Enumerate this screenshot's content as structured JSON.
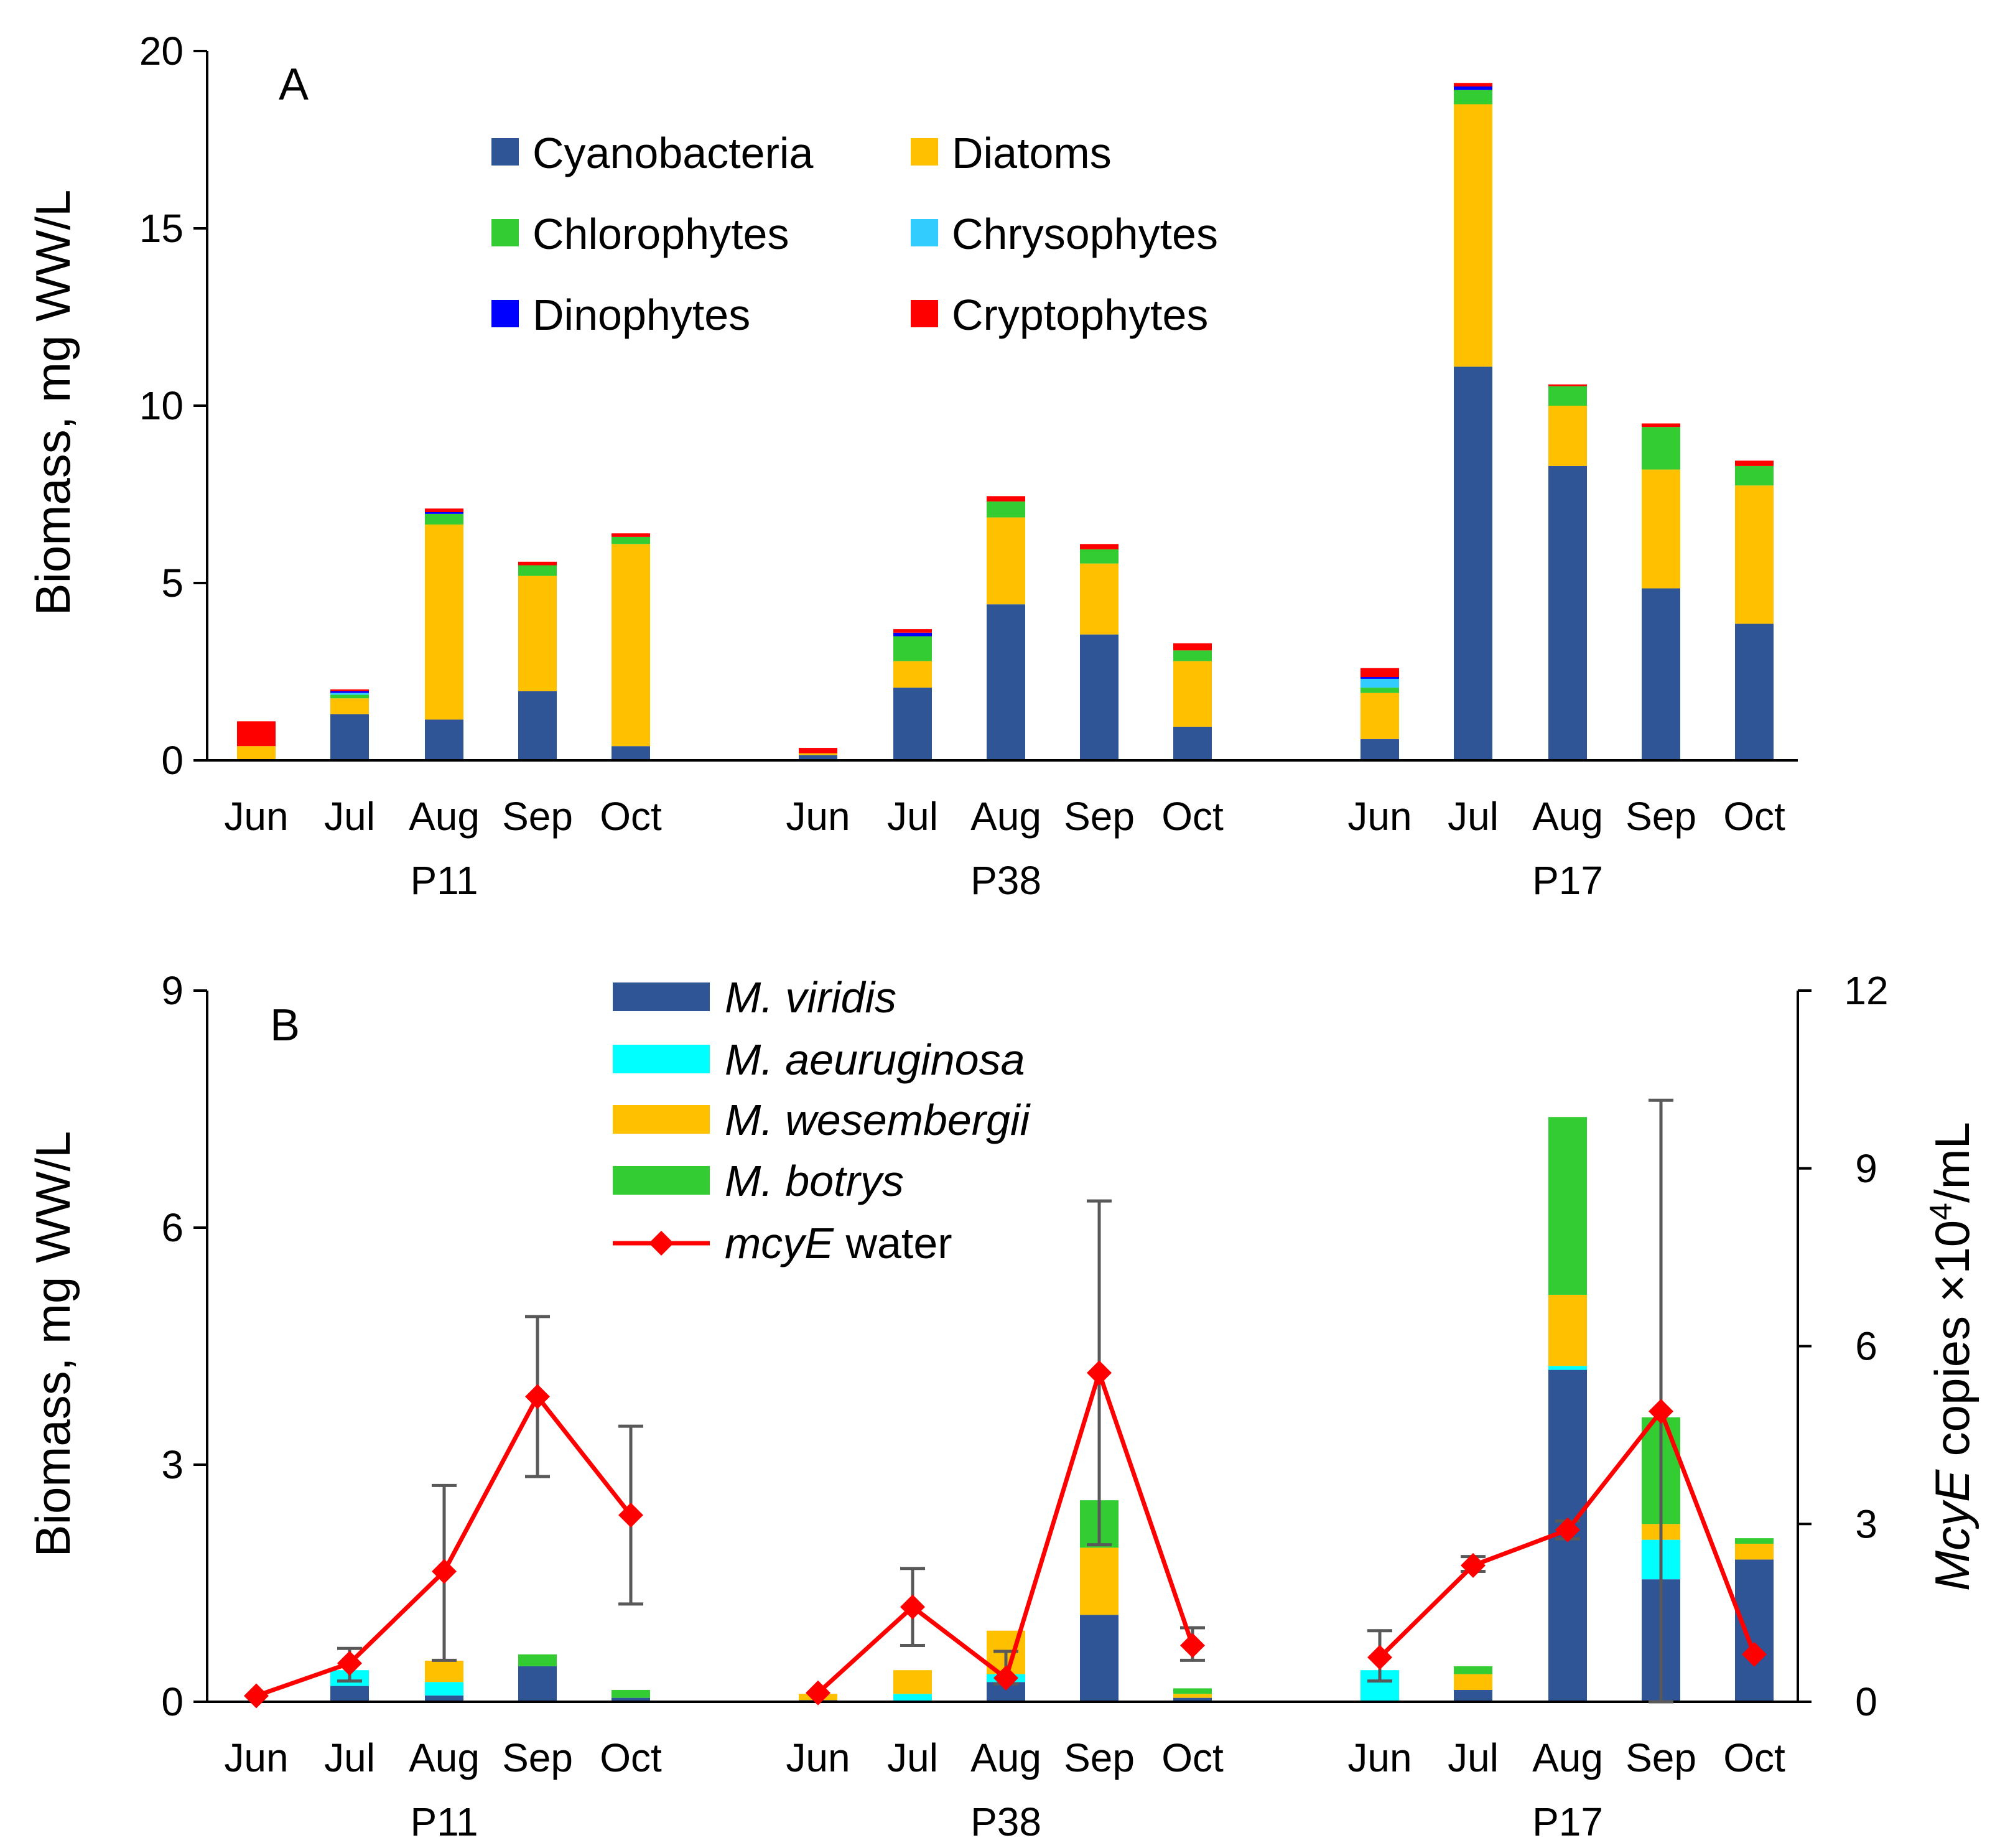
{
  "chart_data": [
    {
      "panel": "A",
      "type": "bar",
      "stacked": true,
      "ylabel": "Biomass, mg WW/L",
      "ylim": [
        0,
        20
      ],
      "yticks": [
        0,
        5,
        10,
        15,
        20
      ],
      "groups": [
        "P11",
        "P38",
        "P17"
      ],
      "months": [
        "Jun",
        "Jul",
        "Aug",
        "Sep",
        "Oct"
      ],
      "legend_position": "top-center",
      "series": [
        {
          "name": "Cyanobacteria",
          "color": "#2f5597",
          "values": [
            0,
            1.3,
            1.15,
            1.95,
            0.4,
            0.15,
            2.05,
            4.4,
            3.55,
            0.95,
            0.6,
            11.1,
            8.3,
            4.85,
            3.85
          ]
        },
        {
          "name": "Diatoms",
          "color": "#ffc000",
          "values": [
            0.4,
            0.45,
            5.5,
            3.25,
            5.7,
            0.05,
            0.75,
            2.45,
            2.0,
            1.85,
            1.3,
            7.4,
            1.7,
            3.35,
            3.9
          ]
        },
        {
          "name": "Chlorophytes",
          "color": "#33cc33",
          "values": [
            0,
            0.1,
            0.3,
            0.3,
            0.2,
            0,
            0.7,
            0.45,
            0.4,
            0.3,
            0.15,
            0.4,
            0.55,
            1.2,
            0.55
          ]
        },
        {
          "name": "Chrysophytes",
          "color": "#33ccff",
          "values": [
            0,
            0.05,
            0,
            0,
            0,
            0,
            0,
            0,
            0,
            0,
            0.25,
            0,
            0,
            0,
            0
          ]
        },
        {
          "name": "Dinophytes",
          "color": "#0000ff",
          "values": [
            0,
            0.05,
            0.05,
            0,
            0,
            0,
            0.1,
            0,
            0,
            0,
            0.05,
            0.1,
            0,
            0,
            0
          ]
        },
        {
          "name": "Cryptophytes",
          "color": "#ff0000",
          "values": [
            0.7,
            0.05,
            0.1,
            0.1,
            0.1,
            0.15,
            0.1,
            0.15,
            0.15,
            0.2,
            0.25,
            0.1,
            0.05,
            0.1,
            0.15
          ]
        }
      ]
    },
    {
      "panel": "B",
      "type": "bar",
      "stacked": true,
      "ylabel": "Biomass, mg WW/L",
      "ylim": [
        0,
        9
      ],
      "yticks": [
        0,
        3,
        6,
        9
      ],
      "y2label_italic": "McyE",
      "y2label_rest": " copies ×10",
      "y2label_sup": "4",
      "y2label_end": "/mL",
      "y2lim": [
        0,
        12
      ],
      "y2ticks": [
        0,
        3,
        6,
        9,
        12
      ],
      "groups": [
        "P11",
        "P38",
        "P17"
      ],
      "months": [
        "Jun",
        "Jul",
        "Aug",
        "Sep",
        "Oct"
      ],
      "legend_position": "top-center",
      "series": [
        {
          "name": "M. viridis",
          "color": "#2f5597",
          "values": [
            0,
            0.2,
            0.08,
            0.45,
            0.05,
            0.02,
            0,
            0.25,
            1.1,
            0.05,
            0,
            0.15,
            4.2,
            1.55,
            1.8
          ]
        },
        {
          "name": "M. aeuruginosa",
          "color": "#00ffff",
          "values": [
            0,
            0.2,
            0.17,
            0,
            0,
            0,
            0.1,
            0.1,
            0,
            0,
            0.4,
            0,
            0.05,
            0.5,
            0
          ]
        },
        {
          "name": "M. wesembergii",
          "color": "#ffc000",
          "values": [
            0,
            0,
            0.27,
            0,
            0,
            0.08,
            0.3,
            0.55,
            0.85,
            0.05,
            0,
            0.2,
            0.9,
            0.2,
            0.2
          ]
        },
        {
          "name": "M. botrys",
          "color": "#33cc33",
          "values": [
            0,
            0,
            0,
            0.15,
            0.1,
            0,
            0,
            0,
            0.6,
            0.07,
            0,
            0.1,
            2.25,
            1.35,
            0.07
          ]
        }
      ],
      "line": {
        "name_italic": "mcyE",
        "name_rest": " water",
        "color": "#ff0000",
        "values": [
          0.1,
          0.65,
          2.2,
          5.15,
          3.15,
          0.15,
          1.6,
          0.4,
          5.55,
          0.95,
          0.75,
          2.3,
          2.9,
          4.9,
          0.8
        ],
        "err_low": [
          null,
          0.35,
          0.7,
          3.8,
          1.65,
          null,
          0.95,
          0.3,
          2.65,
          0.7,
          0.35,
          2.2,
          2.75,
          0,
          null
        ],
        "err_high": [
          null,
          0.9,
          3.65,
          6.5,
          4.65,
          null,
          2.25,
          0.85,
          8.45,
          1.25,
          1.2,
          2.45,
          3.05,
          10.15,
          null
        ]
      }
    }
  ],
  "panel_labels": {
    "a": "A",
    "b": "B"
  }
}
